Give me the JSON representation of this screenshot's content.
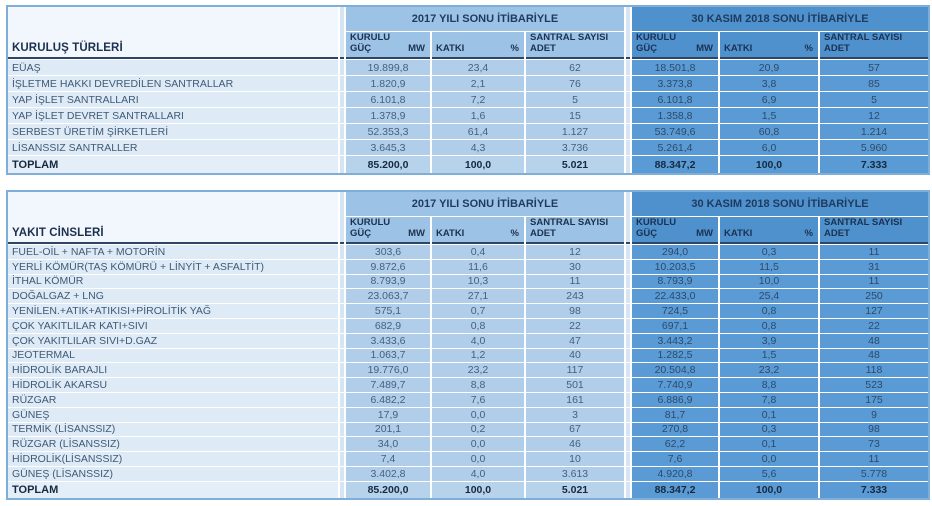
{
  "colors": {
    "band_2017": "#9CC3E5",
    "band_2018": "#4E91CD",
    "cell_2017": "#B0CEEA",
    "cell_2018": "#5B9BD5",
    "row_label_cell": "#DEEBF7",
    "table_border": "#7FAFD9",
    "header_text": "#1c3150"
  },
  "tables": [
    {
      "name": "kurulus-turleri",
      "row_header": "KURULUŞ TÜRLERİ",
      "periods": [
        "2017 YILI SONU İTİBARİYLE",
        "30 KASIM 2018 SONU İTİBARİYLE"
      ],
      "columns": [
        {
          "label": "KURULU GÜÇ",
          "unit": "MW"
        },
        {
          "label": "KATKI",
          "unit": "%"
        },
        {
          "label": "SANTRAL SAYISI ADET",
          "unit": ""
        }
      ],
      "rows": [
        {
          "label": "EÜAŞ",
          "values": [
            "19.899,8",
            "23,4",
            "62",
            "18.501,8",
            "20,9",
            "57"
          ]
        },
        {
          "label": "İŞLETME HAKKI DEVREDİLEN SANTRALLAR",
          "values": [
            "1.820,9",
            "2,1",
            "76",
            "3.373,8",
            "3,8",
            "85"
          ]
        },
        {
          "label": "YAP İŞLET SANTRALLARI",
          "values": [
            "6.101,8",
            "7,2",
            "5",
            "6.101,8",
            "6,9",
            "5"
          ]
        },
        {
          "label": "YAP İŞLET DEVRET SANTRALLARI",
          "values": [
            "1.378,9",
            "1,6",
            "15",
            "1.358,8",
            "1,5",
            "12"
          ]
        },
        {
          "label": "SERBEST ÜRETİM ŞİRKETLERİ",
          "values": [
            "52.353,3",
            "61,4",
            "1.127",
            "53.749,6",
            "60,8",
            "1.214"
          ]
        },
        {
          "label": "LİSANSSIZ SANTRALLER",
          "values": [
            "3.645,3",
            "4,3",
            "3.736",
            "5.261,4",
            "6,0",
            "5.960"
          ]
        }
      ],
      "total": {
        "label": "TOPLAM",
        "values": [
          "85.200,0",
          "100,0",
          "5.021",
          "88.347,2",
          "100,0",
          "7.333"
        ]
      }
    },
    {
      "name": "yakit-cinsleri",
      "row_header": "YAKIT CİNSLERİ",
      "periods": [
        "2017 YILI SONU İTİBARİYLE",
        "30 KASIM 2018 SONU İTİBARİYLE"
      ],
      "columns": [
        {
          "label": "KURULU GÜÇ",
          "unit": "MW"
        },
        {
          "label": "KATKI",
          "unit": "%"
        },
        {
          "label": "SANTRAL SAYISI ADET",
          "unit": ""
        }
      ],
      "rows": [
        {
          "label": "FUEL-OİL + NAFTA + MOTORİN",
          "values": [
            "303,6",
            "0,4",
            "12",
            "294,0",
            "0,3",
            "11"
          ]
        },
        {
          "label": "YERLİ KÖMÜR(TAŞ KÖMÜRÜ + LİNYİT + ASFALTİT)",
          "values": [
            "9.872,6",
            "11,6",
            "30",
            "10.203,5",
            "11,5",
            "31"
          ]
        },
        {
          "label": "İTHAL KÖMÜR",
          "values": [
            "8.793,9",
            "10,3",
            "11",
            "8.793,9",
            "10,0",
            "11"
          ]
        },
        {
          "label": "DOĞALGAZ + LNG",
          "values": [
            "23.063,7",
            "27,1",
            "243",
            "22.433,0",
            "25,4",
            "250"
          ]
        },
        {
          "label": "YENİLEN.+ATIK+ATIKISI+PİROLİTİK YAĞ",
          "values": [
            "575,1",
            "0,7",
            "98",
            "724,5",
            "0,8",
            "127"
          ]
        },
        {
          "label": "ÇOK YAKITLILAR KATI+SIVI",
          "values": [
            "682,9",
            "0,8",
            "22",
            "697,1",
            "0,8",
            "22"
          ]
        },
        {
          "label": "ÇOK YAKITLILAR SIVI+D.GAZ",
          "values": [
            "3.433,6",
            "4,0",
            "47",
            "3.443,2",
            "3,9",
            "48"
          ]
        },
        {
          "label": "JEOTERMAL",
          "values": [
            "1.063,7",
            "1,2",
            "40",
            "1.282,5",
            "1,5",
            "48"
          ]
        },
        {
          "label": "HİDROLİK BARAJLI",
          "values": [
            "19.776,0",
            "23,2",
            "117",
            "20.504,8",
            "23,2",
            "118"
          ]
        },
        {
          "label": "HİDROLİK AKARSU",
          "values": [
            "7.489,7",
            "8,8",
            "501",
            "7.740,9",
            "8,8",
            "523"
          ]
        },
        {
          "label": "RÜZGAR",
          "values": [
            "6.482,2",
            "7,6",
            "161",
            "6.886,9",
            "7,8",
            "175"
          ]
        },
        {
          "label": "GÜNEŞ",
          "values": [
            "17,9",
            "0,0",
            "3",
            "81,7",
            "0,1",
            "9"
          ]
        },
        {
          "label": "TERMİK (LİSANSSIZ)",
          "values": [
            "201,1",
            "0,2",
            "67",
            "270,8",
            "0,3",
            "98"
          ]
        },
        {
          "label": "RÜZGAR (LİSANSSIZ)",
          "values": [
            "34,0",
            "0,0",
            "46",
            "62,2",
            "0,1",
            "73"
          ]
        },
        {
          "label": "HİDROLİK(LİSANSSIZ)",
          "values": [
            "7,4",
            "0,0",
            "10",
            "7,6",
            "0,0",
            "11"
          ]
        },
        {
          "label": "GÜNEŞ (LİSANSSIZ)",
          "values": [
            "3.402,8",
            "4,0",
            "3.613",
            "4.920,8",
            "5,6",
            "5.778"
          ]
        }
      ],
      "total": {
        "label": "TOPLAM",
        "values": [
          "85.200,0",
          "100,0",
          "5.021",
          "88.347,2",
          "100,0",
          "7.333"
        ]
      }
    }
  ]
}
